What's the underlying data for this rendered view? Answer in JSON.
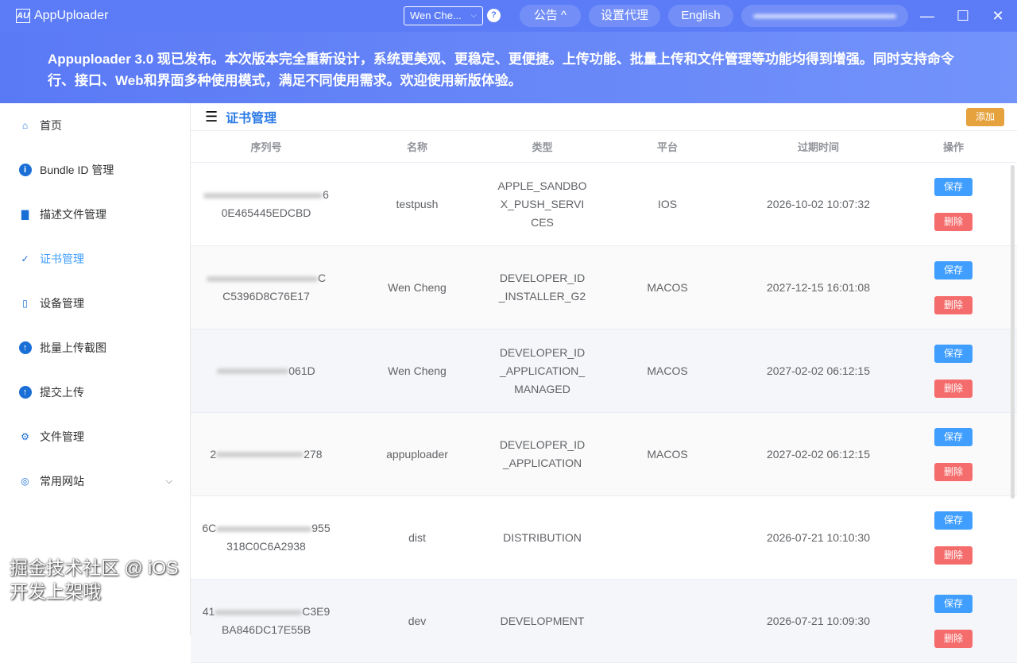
{
  "titlebar": {
    "logo": "AU",
    "app_name": "AppUploader",
    "account": "Wen Che...",
    "help": "?",
    "notice_btn": "公告 ^",
    "proxy_btn": "设置代理",
    "lang_btn": "English",
    "minimize": "—",
    "maximize": "☐",
    "close": "✕"
  },
  "banner": {
    "text": "Appuploader 3.0 现已发布。本次版本完全重新设计，系统更美观、更稳定、更便捷。上传功能、批量上传和文件管理等功能均得到增强。同时支持命令行、接口、Web和界面多种使用模式，满足不同使用需求。欢迎使用新版体验。"
  },
  "sidebar": {
    "items": [
      {
        "label": "首页",
        "icon": "home-icon"
      },
      {
        "label": "Bundle ID 管理",
        "icon": "info-icon"
      },
      {
        "label": "描述文件管理",
        "icon": "file-icon"
      },
      {
        "label": "证书管理",
        "icon": "certificate-icon",
        "active": true
      },
      {
        "label": "设备管理",
        "icon": "phone-icon"
      },
      {
        "label": "批量上传截图",
        "icon": "upload-icon"
      },
      {
        "label": "提交上传",
        "icon": "upload-icon"
      },
      {
        "label": "文件管理",
        "icon": "gear-icon"
      },
      {
        "label": "常用网站",
        "icon": "location-icon"
      }
    ]
  },
  "main": {
    "title": "证书管理",
    "add_label": "添加",
    "columns": [
      "序列号",
      "名称",
      "类型",
      "平台",
      "过期时间",
      "操作"
    ],
    "save_label": "保存",
    "delete_label": "删除",
    "rows": [
      {
        "serial_a": "",
        "serial_b": "6",
        "serial_c": "0E465445EDCBD",
        "name": "testpush",
        "type": "APPLE_SANDBOX_PUSH_SERVICES",
        "platform": "IOS",
        "expires": "2026-10-02 10:07:32"
      },
      {
        "serial_a": "",
        "serial_b": "C",
        "serial_c": "C5396D8C76E17",
        "name": "Wen Cheng",
        "type": "DEVELOPER_ID_INSTALLER_G2",
        "platform": "MACOS",
        "expires": "2027-12-15 16:01:08"
      },
      {
        "serial_a": "",
        "serial_b": "061D",
        "serial_c": "",
        "name": "Wen Cheng",
        "type": "DEVELOPER_ID_APPLICATION_MANAGED",
        "platform": "MACOS",
        "expires": "2027-02-02 06:12:15"
      },
      {
        "serial_a": "2",
        "serial_b": "278",
        "serial_c": "",
        "name": "appuploader",
        "type": "DEVELOPER_ID_APPLICATION",
        "platform": "MACOS",
        "expires": "2027-02-02 06:12:15"
      },
      {
        "serial_a": "6C",
        "serial_b": "955",
        "serial_c": "318C0C6A2938",
        "name": "dist",
        "type": "DISTRIBUTION",
        "platform": "",
        "expires": "2026-07-21 10:10:30"
      },
      {
        "serial_a": "41",
        "serial_b": "C3E9",
        "serial_c": "BA846DC17E55B",
        "name": "dev",
        "type": "DEVELOPMENT",
        "platform": "",
        "expires": "2026-07-21 10:09:30"
      }
    ]
  },
  "watermark": "掘金技术社区 @ iOS开发上架哦"
}
